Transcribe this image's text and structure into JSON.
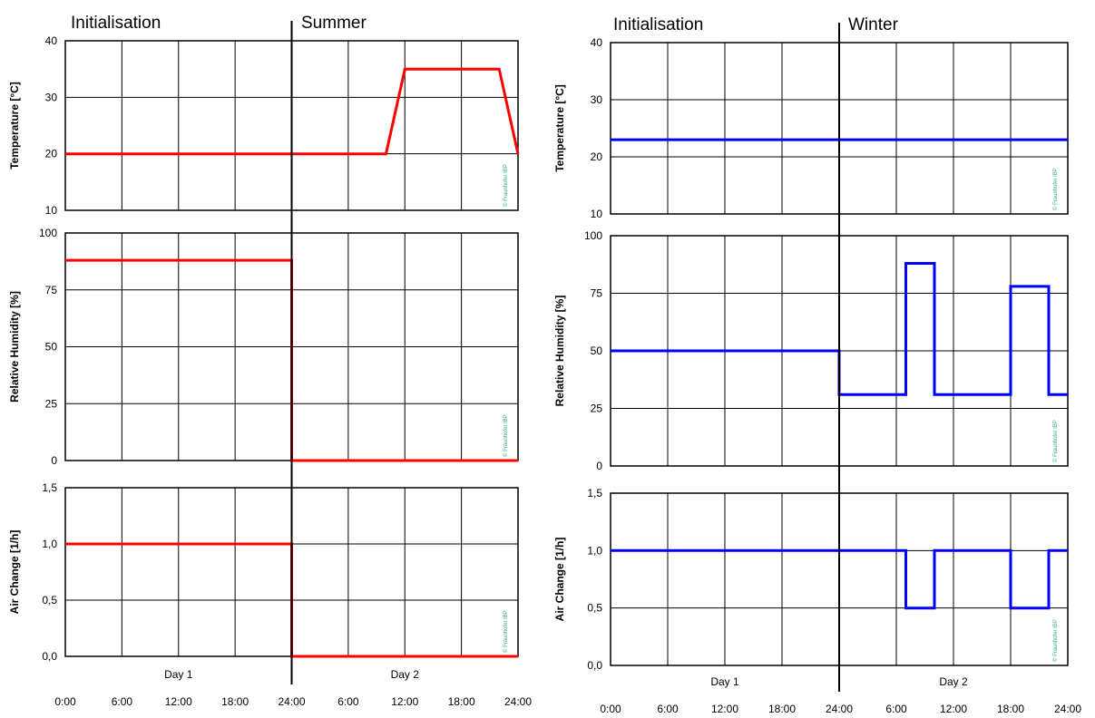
{
  "figure": {
    "colors": {
      "summer": "#ff0000",
      "winter": "#0000ff",
      "grid": "#000000",
      "watermark": "#2fa88a"
    },
    "watermark": "© Fraunhofer IBP"
  },
  "chart_data": [
    {
      "type": "line",
      "panel": "left",
      "phase_labels": [
        "Initialisation",
        "Summer"
      ],
      "day_labels": [
        "Day 1",
        "Day 2"
      ],
      "x_tick_labels": [
        "0:00",
        "6:00",
        "12:00",
        "18:00",
        "24:00",
        "6:00",
        "12:00",
        "18:00",
        "24:00"
      ],
      "x_unit": "hours",
      "xlim": [
        0,
        48
      ],
      "grid": true,
      "color": "#ff0000",
      "subplots": [
        {
          "ylabel": "Temperature [°C]",
          "ylim": [
            10,
            40
          ],
          "yticks": [
            "10",
            "20",
            "30",
            "40"
          ],
          "x": [
            0,
            34,
            36,
            46,
            48
          ],
          "y": [
            20,
            20,
            35,
            35,
            20
          ]
        },
        {
          "ylabel": "Relative Humidity [%]",
          "ylim": [
            0,
            100
          ],
          "yticks": [
            "0",
            "25",
            "50",
            "75",
            "100"
          ],
          "x": [
            0,
            24,
            24,
            48
          ],
          "y": [
            88,
            88,
            0,
            0
          ]
        },
        {
          "ylabel": "Air Change [1/h]",
          "ylim": [
            0,
            1.5
          ],
          "yticks": [
            "0,0",
            "0,5",
            "1,0",
            "1,5"
          ],
          "x": [
            0,
            24,
            24,
            48
          ],
          "y": [
            1.0,
            1.0,
            0,
            0
          ]
        }
      ]
    },
    {
      "type": "line",
      "panel": "right",
      "phase_labels": [
        "Initialisation",
        "Winter"
      ],
      "day_labels": [
        "Day 1",
        "Day 2"
      ],
      "x_tick_labels": [
        "0:00",
        "6:00",
        "12:00",
        "18:00",
        "24:00",
        "6:00",
        "12:00",
        "18:00",
        "24:00"
      ],
      "x_unit": "hours",
      "xlim": [
        0,
        48
      ],
      "grid": true,
      "color": "#0000ff",
      "subplots": [
        {
          "ylabel": "Temperature [°C]",
          "ylim": [
            10,
            40
          ],
          "yticks": [
            "10",
            "20",
            "30",
            "40"
          ],
          "x": [
            0,
            48
          ],
          "y": [
            23,
            23
          ]
        },
        {
          "ylabel": "Relative Humidity [%]",
          "ylim": [
            0,
            100
          ],
          "yticks": [
            "0",
            "25",
            "50",
            "75",
            "100"
          ],
          "x": [
            0,
            24,
            24,
            31,
            31,
            34,
            34,
            42,
            42,
            46,
            46,
            48
          ],
          "y": [
            50,
            50,
            31,
            31,
            88,
            88,
            31,
            31,
            78,
            78,
            31,
            31
          ]
        },
        {
          "ylabel": "Air Change [1/h]",
          "ylim": [
            0,
            1.5
          ],
          "yticks": [
            "0,0",
            "0,5",
            "1,0",
            "1,5"
          ],
          "x": [
            0,
            31,
            31,
            34,
            34,
            42,
            42,
            46,
            46,
            48
          ],
          "y": [
            1.0,
            1.0,
            0.5,
            0.5,
            1.0,
            1.0,
            0.5,
            0.5,
            1.0,
            1.0
          ]
        }
      ]
    }
  ]
}
